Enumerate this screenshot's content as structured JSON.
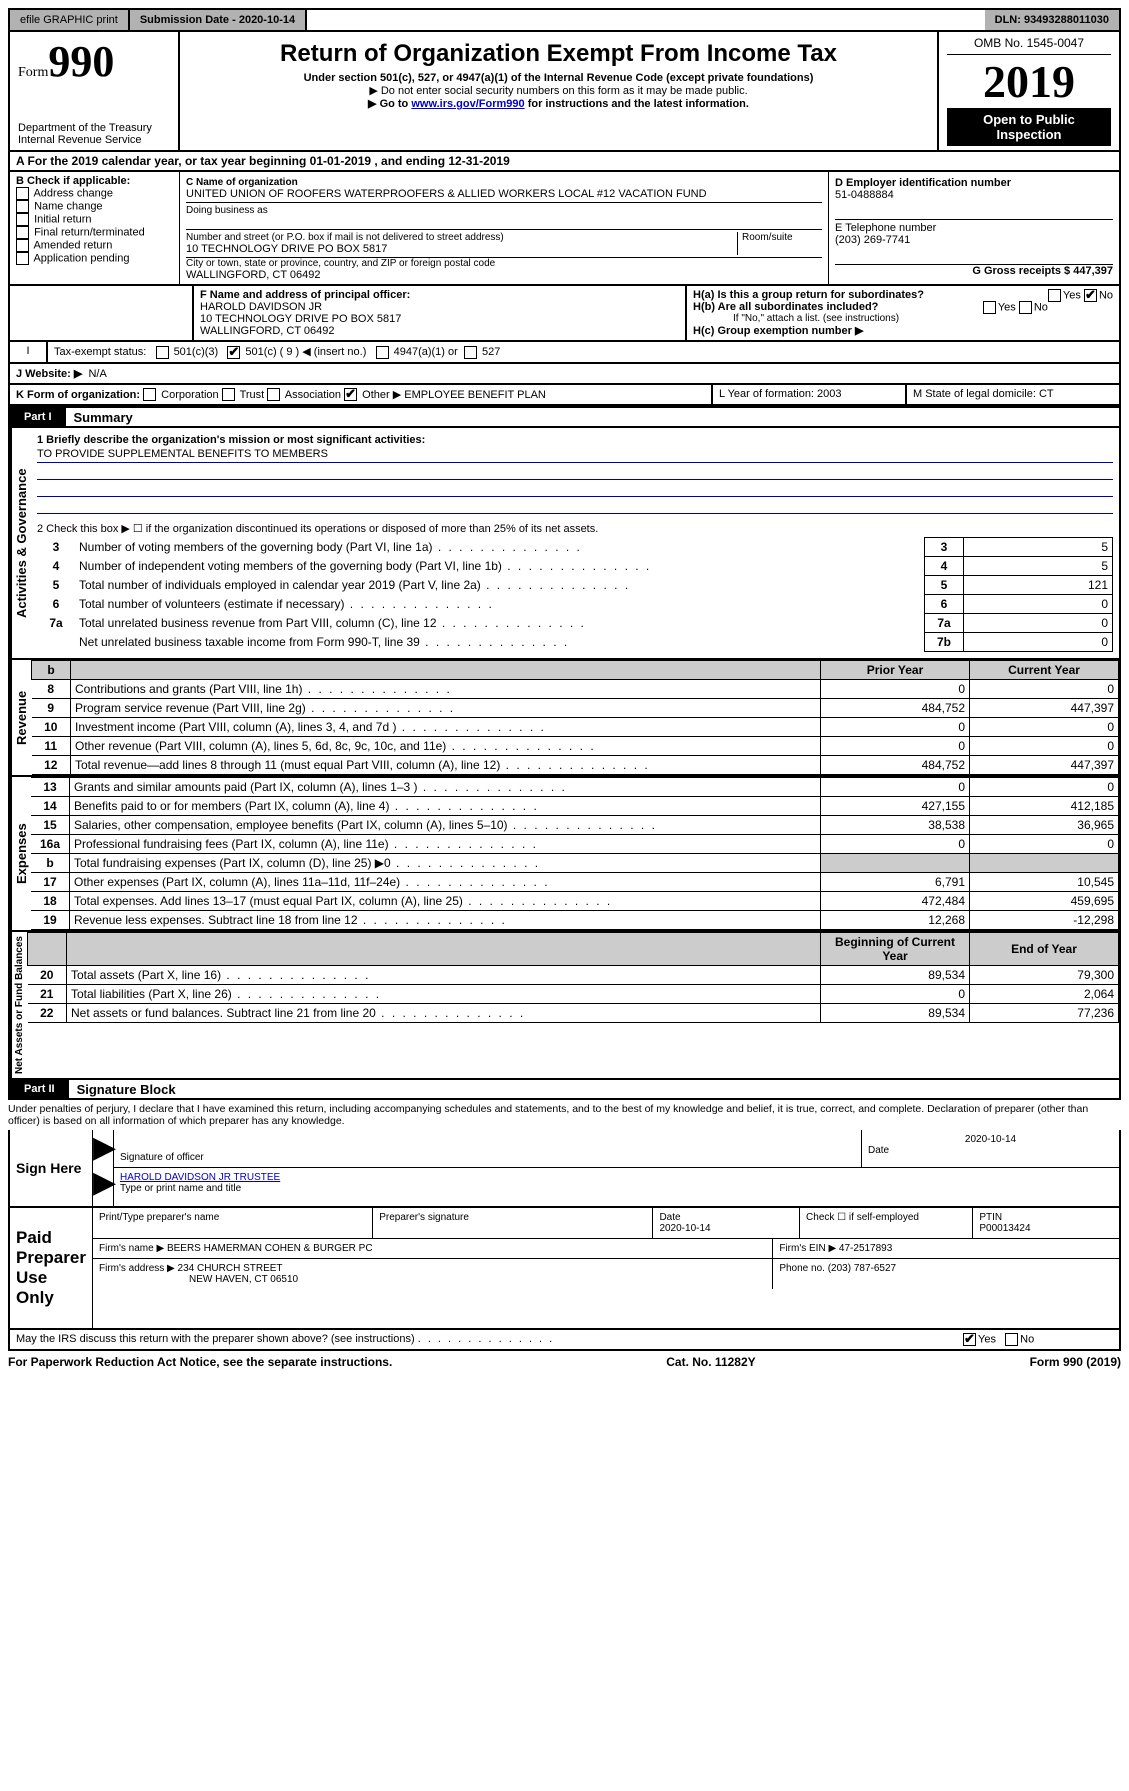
{
  "top": {
    "efile": "efile GRAPHIC print",
    "submission_label": "Submission Date - 2020-10-14",
    "dln": "DLN: 93493288011030"
  },
  "header": {
    "form_prefix": "Form",
    "form_number": "990",
    "dept": "Department of the Treasury",
    "irs": "Internal Revenue Service",
    "title": "Return of Organization Exempt From Income Tax",
    "subtitle": "Under section 501(c), 527, or 4947(a)(1) of the Internal Revenue Code (except private foundations)",
    "note1": "▶ Do not enter social security numbers on this form as it may be made public.",
    "note2_prefix": "▶ Go to ",
    "note2_link": "www.irs.gov/Form990",
    "note2_suffix": " for instructions and the latest information.",
    "omb": "OMB No. 1545-0047",
    "year": "2019",
    "open": "Open to Public Inspection"
  },
  "line_a": "A For the 2019 calendar year, or tax year beginning 01-01-2019    , and ending 12-31-2019",
  "block_b": {
    "b_label": "B Check if applicable:",
    "opts": [
      "Address change",
      "Name change",
      "Initial return",
      "Final return/terminated",
      "Amended return",
      "Application pending"
    ],
    "c_name_label": "C Name of organization",
    "c_name": "UNITED UNION OF ROOFERS WATERPROOFERS & ALLIED WORKERS LOCAL #12 VACATION FUND",
    "dba_label": "Doing business as",
    "addr_label": "Number and street (or P.O. box if mail is not delivered to street address)",
    "room_label": "Room/suite",
    "addr": "10 TECHNOLOGY DRIVE PO BOX 5817",
    "city_label": "City or town, state or province, country, and ZIP or foreign postal code",
    "city": "WALLINGFORD, CT  06492",
    "d_label": "D Employer identification number",
    "d_ein": "51-0488884",
    "e_label": "E Telephone number",
    "e_phone": "(203) 269-7741",
    "g_label": "G Gross receipts $ 447,397"
  },
  "block_fh": {
    "f_label": "F Name and address of principal officer:",
    "f_name": "HAROLD DAVIDSON JR",
    "f_addr1": "10 TECHNOLOGY DRIVE PO BOX 5817",
    "f_addr2": "WALLINGFORD, CT  06492",
    "ha_label": "H(a)  Is this a group return for subordinates?",
    "hb_label": "H(b)  Are all subordinates included?",
    "hb_note": "If \"No,\" attach a list. (see instructions)",
    "hc_label": "H(c)  Group exemption number ▶"
  },
  "block_i": {
    "label": "Tax-exempt status:",
    "o1": "501(c)(3)",
    "o2_pre": "501(c) ( 9 ) ◀ (insert no.)",
    "o3": "4947(a)(1) or",
    "o4": "527"
  },
  "block_j": {
    "label": "J   Website: ▶",
    "val": "N/A"
  },
  "block_k": {
    "label": "K Form of organization:",
    "o1": "Corporation",
    "o2": "Trust",
    "o3": "Association",
    "o4_pre": "Other ▶",
    "o4_val": "EMPLOYEE BENEFIT PLAN",
    "l_label": "L Year of formation: 2003",
    "m_label": "M State of legal domicile: CT"
  },
  "part1": {
    "tag": "Part I",
    "title": "Summary",
    "line1_label": "1  Briefly describe the organization's mission or most significant activities:",
    "line1_val": "TO PROVIDE SUPPLEMENTAL BENEFITS TO MEMBERS",
    "line2": "2   Check this box ▶ ☐  if the organization discontinued its operations or disposed of more than 25% of its net assets.",
    "rows_ag": [
      {
        "n": "3",
        "t": "Number of voting members of the governing body (Part VI, line 1a)",
        "bn": "3",
        "v": "5"
      },
      {
        "n": "4",
        "t": "Number of independent voting members of the governing body (Part VI, line 1b)",
        "bn": "4",
        "v": "5"
      },
      {
        "n": "5",
        "t": "Total number of individuals employed in calendar year 2019 (Part V, line 2a)",
        "bn": "5",
        "v": "121"
      },
      {
        "n": "6",
        "t": "Total number of volunteers (estimate if necessary)",
        "bn": "6",
        "v": "0"
      },
      {
        "n": "7a",
        "t": "Total unrelated business revenue from Part VIII, column (C), line 12",
        "bn": "7a",
        "v": "0"
      },
      {
        "n": "",
        "t": "Net unrelated business taxable income from Form 990-T, line 39",
        "bn": "7b",
        "v": "0"
      }
    ],
    "hdr_b": "b",
    "hdr_prior": "Prior Year",
    "hdr_current": "Current Year",
    "revenue": [
      {
        "n": "8",
        "t": "Contributions and grants (Part VIII, line 1h)",
        "p": "0",
        "c": "0"
      },
      {
        "n": "9",
        "t": "Program service revenue (Part VIII, line 2g)",
        "p": "484,752",
        "c": "447,397"
      },
      {
        "n": "10",
        "t": "Investment income (Part VIII, column (A), lines 3, 4, and 7d )",
        "p": "0",
        "c": "0"
      },
      {
        "n": "11",
        "t": "Other revenue (Part VIII, column (A), lines 5, 6d, 8c, 9c, 10c, and 11e)",
        "p": "0",
        "c": "0"
      },
      {
        "n": "12",
        "t": "Total revenue—add lines 8 through 11 (must equal Part VIII, column (A), line 12)",
        "p": "484,752",
        "c": "447,397"
      }
    ],
    "expenses": [
      {
        "n": "13",
        "t": "Grants and similar amounts paid (Part IX, column (A), lines 1–3 )",
        "p": "0",
        "c": "0"
      },
      {
        "n": "14",
        "t": "Benefits paid to or for members (Part IX, column (A), line 4)",
        "p": "427,155",
        "c": "412,185"
      },
      {
        "n": "15",
        "t": "Salaries, other compensation, employee benefits (Part IX, column (A), lines 5–10)",
        "p": "38,538",
        "c": "36,965"
      },
      {
        "n": "16a",
        "t": "Professional fundraising fees (Part IX, column (A), line 11e)",
        "p": "0",
        "c": "0"
      },
      {
        "n": "b",
        "t": "Total fundraising expenses (Part IX, column (D), line 25) ▶0",
        "p": "",
        "c": "",
        "grey": true,
        "small": true
      },
      {
        "n": "17",
        "t": "Other expenses (Part IX, column (A), lines 11a–11d, 11f–24e)",
        "p": "6,791",
        "c": "10,545"
      },
      {
        "n": "18",
        "t": "Total expenses. Add lines 13–17 (must equal Part IX, column (A), line 25)",
        "p": "472,484",
        "c": "459,695"
      },
      {
        "n": "19",
        "t": "Revenue less expenses. Subtract line 18 from line 12",
        "p": "12,268",
        "c": "-12,298"
      }
    ],
    "hdr_begin": "Beginning of Current Year",
    "hdr_end": "End of Year",
    "netassets": [
      {
        "n": "20",
        "t": "Total assets (Part X, line 16)",
        "p": "89,534",
        "c": "79,300"
      },
      {
        "n": "21",
        "t": "Total liabilities (Part X, line 26)",
        "p": "0",
        "c": "2,064"
      },
      {
        "n": "22",
        "t": "Net assets or fund balances. Subtract line 21 from line 20",
        "p": "89,534",
        "c": "77,236"
      }
    ],
    "vlab_ag": "Activities & Governance",
    "vlab_rev": "Revenue",
    "vlab_exp": "Expenses",
    "vlab_na": "Net Assets or Fund Balances"
  },
  "part2": {
    "tag": "Part II",
    "title": "Signature Block",
    "penalties": "Under penalties of perjury, I declare that I have examined this return, including accompanying schedules and statements, and to the best of my knowledge and belief, it is true, correct, and complete. Declaration of preparer (other than officer) is based on all information of which preparer has any knowledge.",
    "sign_here": "Sign Here",
    "sig_officer": "Signature of officer",
    "sig_date": "2020-10-14",
    "date_lbl": "Date",
    "typed_name": "HAROLD DAVIDSON JR TRUSTEE",
    "typed_lbl": "Type or print name and title",
    "paid": "Paid Preparer Use Only",
    "prep_name_lbl": "Print/Type preparer's name",
    "prep_sig_lbl": "Preparer's signature",
    "prep_date": "2020-10-14",
    "check_lbl": "Check ☐ if self-employed",
    "ptin_lbl": "PTIN",
    "ptin": "P00013424",
    "firm_name_lbl": "Firm's name    ▶",
    "firm_name": "BEERS HAMERMAN COHEN & BURGER PC",
    "firm_ein_lbl": "Firm's EIN ▶ 47-2517893",
    "firm_addr_lbl": "Firm's address ▶",
    "firm_addr1": "234 CHURCH STREET",
    "firm_addr2": "NEW HAVEN, CT  06510",
    "firm_phone": "Phone no. (203) 787-6527",
    "discuss": "May the IRS discuss this return with the preparer shown above? (see instructions)"
  },
  "footer": {
    "left": "For Paperwork Reduction Act Notice, see the separate instructions.",
    "mid": "Cat. No. 11282Y",
    "right": "Form 990 (2019)"
  }
}
